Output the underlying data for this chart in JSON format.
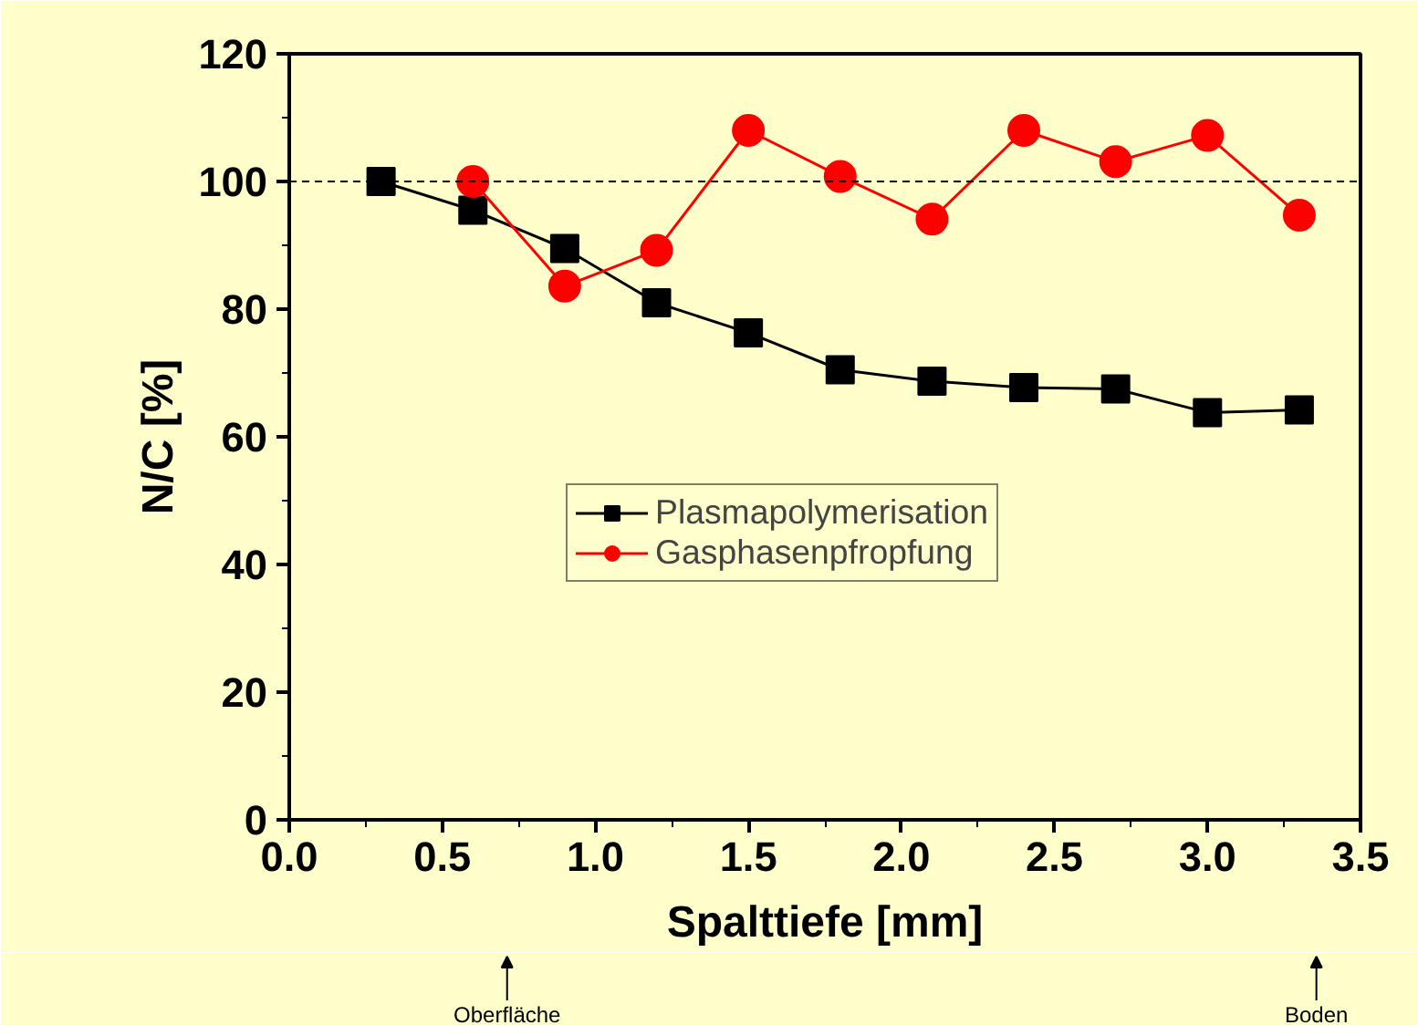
{
  "chart_data": {
    "type": "line",
    "xlabel": "Spalttiefe [mm]",
    "ylabel": "N/C [%]",
    "x": [
      0.3,
      0.6,
      0.9,
      1.2,
      1.5,
      1.8,
      2.1,
      2.4,
      2.7,
      3.0,
      3.3
    ],
    "series": [
      {
        "name": "Plasmapolymerisation",
        "color": "#000000",
        "marker": "square",
        "values": [
          100,
          95.5,
          89.5,
          81,
          76.3,
          70.5,
          68.7,
          67.7,
          67.5,
          63.8,
          64.2
        ]
      },
      {
        "name": "Gasphasenpfropfung",
        "color": "#ff0000",
        "marker": "circle",
        "values": [
          null,
          100,
          83.6,
          89.2,
          108,
          100.8,
          94.1,
          108,
          103.1,
          107.2,
          94.7
        ]
      }
    ],
    "xlim": [
      0,
      3.5
    ],
    "xticks": [
      {
        "value": 0,
        "label": "0.0"
      },
      0.5,
      {
        "value": 1,
        "label": "1.0"
      },
      1.5,
      {
        "value": 2,
        "label": "2.0"
      },
      2.5,
      {
        "value": 3,
        "label": "3.0"
      },
      3.5
    ],
    "ylim": [
      0,
      120
    ],
    "yticks": [
      0,
      20,
      40,
      60,
      80,
      100,
      120
    ],
    "ref_lines": [
      {
        "axis": "y",
        "value": 100,
        "color": "#000000",
        "line_style": "dashed"
      }
    ],
    "annotations": [
      "Oberfläche",
      "Boden"
    ],
    "grid": false,
    "legend": "left",
    "line_style": "solid"
  }
}
